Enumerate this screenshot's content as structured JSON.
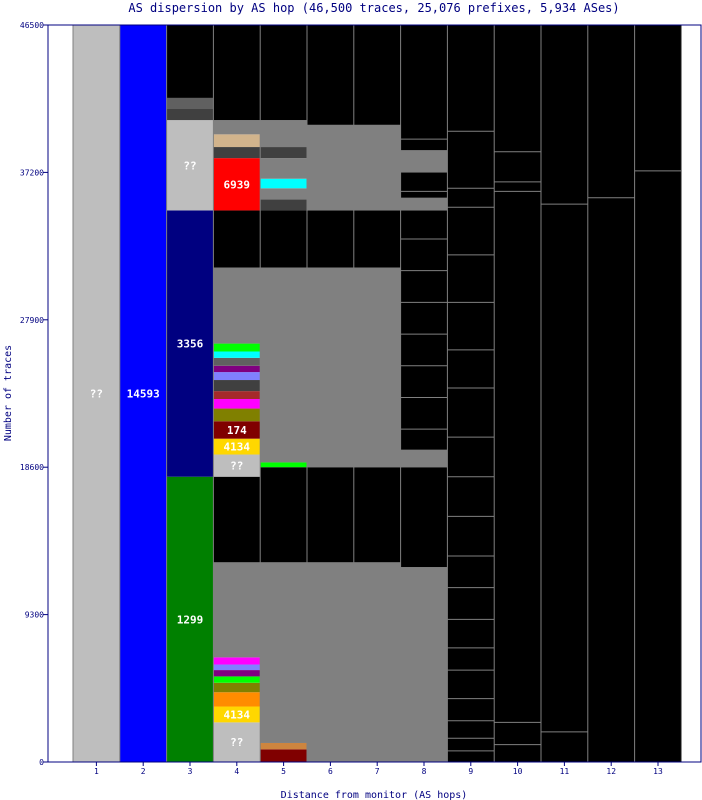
{
  "chart_data": {
    "type": "bar",
    "title": "AS dispersion by AS hop (46,500 traces, 25,076 prefixes, 5,934 ASes)",
    "xlabel": "Distance from monitor (AS hops)",
    "ylabel": "Number of traces",
    "ylim": [
      0,
      46500
    ],
    "yticks": [
      "0",
      "9300",
      "18600",
      "27900",
      "37200",
      "46500"
    ],
    "categories": [
      "1",
      "2",
      "3",
      "4",
      "5",
      "6",
      "7",
      "8",
      "9",
      "10",
      "11",
      "12",
      "13"
    ],
    "colors": {
      "unknown": "#bebebe",
      "as14593": "#0000ff",
      "as3356": "#000080",
      "as1299": "#008000",
      "as6939": "#ff0000",
      "as174": "#800000",
      "as4134": "#ffd700",
      "no_data": "#000000",
      "minor": "#808080",
      "axis": "#000080"
    },
    "segments": [
      {
        "hop": "1",
        "label": "??",
        "from": 0,
        "to": 46500,
        "color": "#bebebe"
      },
      {
        "hop": "2",
        "label": "14593",
        "from": 0,
        "to": 46500,
        "color": "#0000ff"
      },
      {
        "hop": "3",
        "label": "1299",
        "from": 0,
        "to": 18000,
        "color": "#008000"
      },
      {
        "hop": "3",
        "label": "3356",
        "from": 18000,
        "to": 34800,
        "color": "#000080"
      },
      {
        "hop": "3",
        "label": "??",
        "from": 34800,
        "to": 40500,
        "color": "#bebebe"
      },
      {
        "hop": "3",
        "label": "",
        "from": 40500,
        "to": 41200,
        "color": "#404040"
      },
      {
        "hop": "3",
        "label": "",
        "from": 41200,
        "to": 41900,
        "color": "#606060"
      },
      {
        "hop": "3",
        "label": "",
        "from": 41900,
        "to": 46500,
        "color": "#000000"
      },
      {
        "hop": "4",
        "label": "??",
        "from": 0,
        "to": 2500,
        "color": "#bebebe"
      },
      {
        "hop": "4",
        "label": "4134",
        "from": 2500,
        "to": 3500,
        "color": "#ffd700"
      },
      {
        "hop": "4",
        "label": "",
        "from": 3500,
        "to": 4400,
        "color": "#ff8c00"
      },
      {
        "hop": "4",
        "label": "",
        "from": 4400,
        "to": 5000,
        "color": "#808000"
      },
      {
        "hop": "4",
        "label": "",
        "from": 5000,
        "to": 5400,
        "color": "#00ff00"
      },
      {
        "hop": "4",
        "label": "",
        "from": 5400,
        "to": 5800,
        "color": "#800080"
      },
      {
        "hop": "4",
        "label": "",
        "from": 5800,
        "to": 6150,
        "color": "#8080ff"
      },
      {
        "hop": "4",
        "label": "",
        "from": 6150,
        "to": 6600,
        "color": "#ff00ff"
      },
      {
        "hop": "4",
        "label": "",
        "from": 6600,
        "to": 12600,
        "color": "#808080"
      },
      {
        "hop": "4",
        "label": "",
        "from": 12600,
        "to": 18000,
        "color": "#000000"
      },
      {
        "hop": "4",
        "label": "??",
        "from": 18000,
        "to": 19400,
        "color": "#bebebe"
      },
      {
        "hop": "4",
        "label": "4134",
        "from": 19400,
        "to": 20400,
        "color": "#ffd700"
      },
      {
        "hop": "4",
        "label": "174",
        "from": 20400,
        "to": 21500,
        "color": "#800000"
      },
      {
        "hop": "4",
        "label": "",
        "from": 21500,
        "to": 22300,
        "color": "#808000"
      },
      {
        "hop": "4",
        "label": "",
        "from": 22300,
        "to": 22900,
        "color": "#ff00ff"
      },
      {
        "hop": "4",
        "label": "",
        "from": 22900,
        "to": 23400,
        "color": "#a52a2a"
      },
      {
        "hop": "4",
        "label": "",
        "from": 23400,
        "to": 24100,
        "color": "#404040"
      },
      {
        "hop": "4",
        "label": "",
        "from": 24100,
        "to": 24600,
        "color": "#8080ff"
      },
      {
        "hop": "4",
        "label": "",
        "from": 24600,
        "to": 25000,
        "color": "#800080"
      },
      {
        "hop": "4",
        "label": "",
        "from": 25000,
        "to": 25500,
        "color": "#606060"
      },
      {
        "hop": "4",
        "label": "",
        "from": 25500,
        "to": 25900,
        "color": "#00ffff"
      },
      {
        "hop": "4",
        "label": "",
        "from": 25900,
        "to": 26400,
        "color": "#00ff00"
      },
      {
        "hop": "4",
        "label": "",
        "from": 26400,
        "to": 31200,
        "color": "#808080"
      },
      {
        "hop": "4",
        "label": "",
        "from": 31200,
        "to": 34800,
        "color": "#000000"
      },
      {
        "hop": "4",
        "label": "6939",
        "from": 34800,
        "to": 38100,
        "color": "#ff0000"
      },
      {
        "hop": "4",
        "label": "",
        "from": 38100,
        "to": 38800,
        "color": "#404040"
      },
      {
        "hop": "4",
        "label": "",
        "from": 38800,
        "to": 39600,
        "color": "#d2b48c"
      },
      {
        "hop": "4",
        "label": "",
        "from": 39600,
        "to": 40500,
        "color": "#808080"
      },
      {
        "hop": "4",
        "label": "",
        "from": 40500,
        "to": 46500,
        "color": "#000000"
      },
      {
        "hop": "5",
        "label": "",
        "from": 0,
        "to": 800,
        "color": "#800000"
      },
      {
        "hop": "5",
        "label": "",
        "from": 800,
        "to": 1200,
        "color": "#cd853f"
      },
      {
        "hop": "5",
        "label": "",
        "from": 1200,
        "to": 12600,
        "color": "#808080"
      },
      {
        "hop": "5",
        "label": "",
        "from": 12600,
        "to": 18600,
        "color": "#000000"
      },
      {
        "hop": "5",
        "label": "",
        "from": 18600,
        "to": 18900,
        "color": "#00ff00"
      },
      {
        "hop": "5",
        "label": "",
        "from": 18900,
        "to": 31200,
        "color": "#808080"
      },
      {
        "hop": "5",
        "label": "",
        "from": 31200,
        "to": 34800,
        "color": "#000000"
      },
      {
        "hop": "5",
        "label": "",
        "from": 34800,
        "to": 35500,
        "color": "#404040"
      },
      {
        "hop": "5",
        "label": "",
        "from": 35500,
        "to": 36200,
        "color": "#808080"
      },
      {
        "hop": "5",
        "label": "",
        "from": 36200,
        "to": 36800,
        "color": "#00ffff"
      },
      {
        "hop": "5",
        "label": "",
        "from": 36800,
        "to": 38100,
        "color": "#808080"
      },
      {
        "hop": "5",
        "label": "",
        "from": 38100,
        "to": 38800,
        "color": "#404040"
      },
      {
        "hop": "5",
        "label": "",
        "from": 38800,
        "to": 40500,
        "color": "#808080"
      },
      {
        "hop": "5",
        "label": "",
        "from": 40500,
        "to": 46500,
        "color": "#000000"
      },
      {
        "hop": "6",
        "label": "",
        "from": 0,
        "to": 12600,
        "color": "#808080"
      },
      {
        "hop": "6",
        "label": "",
        "from": 12600,
        "to": 18600,
        "color": "#000000"
      },
      {
        "hop": "6",
        "label": "",
        "from": 18600,
        "to": 31200,
        "color": "#808080"
      },
      {
        "hop": "6",
        "label": "",
        "from": 31200,
        "to": 34800,
        "color": "#000000"
      },
      {
        "hop": "6",
        "label": "",
        "from": 34800,
        "to": 40200,
        "color": "#808080"
      },
      {
        "hop": "6",
        "label": "",
        "from": 40200,
        "to": 46500,
        "color": "#000000"
      },
      {
        "hop": "7",
        "label": "",
        "from": 0,
        "to": 12600,
        "color": "#808080"
      },
      {
        "hop": "7",
        "label": "",
        "from": 12600,
        "to": 18600,
        "color": "#000000"
      },
      {
        "hop": "7",
        "label": "",
        "from": 18600,
        "to": 31200,
        "color": "#808080"
      },
      {
        "hop": "7",
        "label": "",
        "from": 31200,
        "to": 34800,
        "color": "#000000"
      },
      {
        "hop": "7",
        "label": "",
        "from": 34800,
        "to": 40200,
        "color": "#808080"
      },
      {
        "hop": "7",
        "label": "",
        "from": 40200,
        "to": 46500,
        "color": "#000000"
      },
      {
        "hop": "8",
        "label": "",
        "from": 0,
        "to": 12300,
        "color": "#808080"
      },
      {
        "hop": "8",
        "label": "",
        "from": 12300,
        "to": 18600,
        "color": "#000000"
      },
      {
        "hop": "8",
        "label": "",
        "from": 18600,
        "to": 19700,
        "color": "#808080"
      },
      {
        "hop": "8",
        "label": "",
        "from": 19700,
        "to": 31200,
        "color": "#000000"
      },
      {
        "hop": "8",
        "label": "",
        "from": 31200,
        "to": 34800,
        "color": "#000000"
      },
      {
        "hop": "8",
        "label": "",
        "from": 34800,
        "to": 35600,
        "color": "#808080"
      },
      {
        "hop": "8",
        "label": "",
        "from": 35600,
        "to": 37200,
        "color": "#000000"
      },
      {
        "hop": "8",
        "label": "",
        "from": 37200,
        "to": 38600,
        "color": "#808080"
      },
      {
        "hop": "8",
        "label": "",
        "from": 38600,
        "to": 46500,
        "color": "#000000"
      },
      {
        "hop": "9",
        "label": "",
        "from": 0,
        "to": 46500,
        "color": "#000000"
      },
      {
        "hop": "10",
        "label": "",
        "from": 0,
        "to": 46500,
        "color": "#000000"
      },
      {
        "hop": "11",
        "label": "",
        "from": 0,
        "to": 46500,
        "color": "#000000"
      },
      {
        "hop": "12",
        "label": "",
        "from": 0,
        "to": 46500,
        "color": "#000000"
      },
      {
        "hop": "13",
        "label": "",
        "from": 0,
        "to": 46500,
        "color": "#000000"
      }
    ],
    "thin_lines": {
      "color": "#808080",
      "hops": {
        "4": [
          7200,
          7800,
          8400,
          9000,
          9600,
          10200,
          10800,
          11400,
          12000,
          27000,
          28000,
          28800,
          29600,
          30400
        ],
        "5": [
          2000,
          3000,
          4000,
          5000,
          6000,
          7000,
          8000,
          9000,
          10000,
          11000,
          20000,
          21000,
          22000,
          23000,
          24000,
          25000,
          26000,
          27000,
          28000,
          29000,
          30000,
          37500,
          39500
        ],
        "6": [
          1000,
          2000,
          3200,
          4400,
          5600,
          6800,
          8000,
          9200,
          10400,
          11600,
          19800,
          21000,
          22200,
          23400,
          24600,
          25800,
          27000,
          28200,
          29400,
          30600,
          36000,
          37200,
          38400,
          39600
        ],
        "7": [
          1400,
          2800,
          4200,
          5600,
          7000,
          8400,
          9800,
          11200,
          12400,
          20400,
          21800,
          23200,
          24600,
          26000,
          27400,
          28800,
          30200,
          35200,
          36400,
          37600,
          38800,
          39800
        ],
        "8": [
          1000,
          2200,
          3400,
          4600,
          5800,
          7000,
          8200,
          9400,
          10600,
          11800,
          21000,
          23000,
          25000,
          27000,
          29000,
          31000,
          33000,
          36000,
          39300
        ],
        "9": [
          700,
          1500,
          2600,
          4000,
          5800,
          7200,
          9000,
          11000,
          13000,
          15500,
          18000,
          20500,
          23600,
          26000,
          29000,
          32000,
          35000,
          36200,
          39800
        ],
        "10": [
          1100,
          2500,
          36000,
          36600,
          38500
        ],
        "11": [
          1900,
          35200
        ],
        "12": [
          35600
        ],
        "13": [
          37300
        ]
      }
    },
    "label_color": "#ffffff"
  }
}
